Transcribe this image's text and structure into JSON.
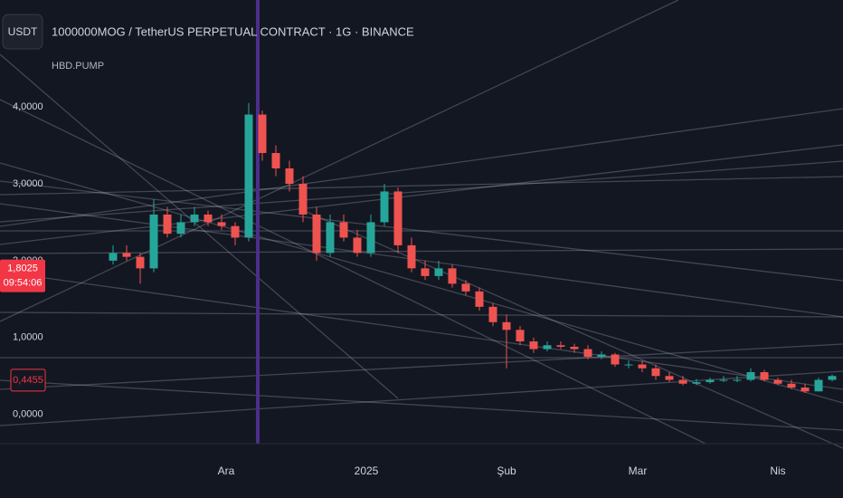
{
  "chart_data": {
    "type": "candlestick",
    "title": "1000000MOG / TetherUS PERPETUAL CONTRACT · 1G · BINANCE",
    "subtitle": "HBD.PUMP",
    "currency_button": "USDT",
    "up_color": "#26a69a",
    "down_color": "#ef5350",
    "x": [
      0,
      3,
      6,
      9,
      12,
      15,
      18,
      21,
      24,
      27,
      30,
      33,
      36,
      39,
      42,
      45,
      48,
      51,
      54,
      57,
      60,
      63,
      66,
      69,
      72,
      75,
      78,
      81,
      84,
      87,
      90,
      93,
      96,
      99,
      102,
      105,
      108,
      111,
      114,
      117,
      120,
      123,
      126,
      129,
      132,
      135,
      138,
      141,
      144,
      147,
      150,
      153,
      156,
      159
    ],
    "open": [
      2.0,
      2.1,
      2.05,
      1.9,
      2.6,
      2.35,
      2.5,
      2.6,
      2.5,
      2.45,
      2.3,
      3.9,
      3.4,
      3.2,
      3.0,
      2.6,
      2.1,
      2.5,
      2.3,
      2.1,
      2.5,
      2.9,
      2.2,
      1.9,
      1.8,
      1.9,
      1.7,
      1.6,
      1.4,
      1.2,
      1.1,
      0.95,
      0.85,
      0.9,
      0.88,
      0.85,
      0.75,
      0.78,
      0.65,
      0.65,
      0.6,
      0.5,
      0.45,
      0.4,
      0.42,
      0.45,
      0.45,
      0.45,
      0.55,
      0.45,
      0.4,
      0.35,
      0.3,
      0.45
    ],
    "high": [
      2.2,
      2.2,
      2.1,
      2.8,
      2.7,
      2.6,
      2.7,
      2.65,
      2.6,
      2.5,
      4.05,
      3.95,
      3.5,
      3.3,
      3.1,
      2.7,
      2.6,
      2.6,
      2.4,
      2.6,
      3.0,
      2.95,
      2.3,
      2.0,
      2.0,
      1.95,
      1.75,
      1.65,
      1.45,
      1.3,
      1.15,
      1.0,
      0.95,
      0.95,
      0.92,
      0.9,
      0.82,
      0.8,
      0.7,
      0.7,
      0.65,
      0.55,
      0.5,
      0.46,
      0.48,
      0.5,
      0.5,
      0.6,
      0.58,
      0.48,
      0.45,
      0.4,
      0.48,
      0.52
    ],
    "low": [
      1.95,
      2.0,
      1.7,
      1.85,
      2.3,
      2.3,
      2.45,
      2.45,
      2.4,
      2.2,
      2.25,
      3.3,
      3.1,
      2.9,
      2.5,
      2.0,
      2.05,
      2.25,
      2.05,
      2.05,
      2.45,
      2.1,
      1.85,
      1.75,
      1.75,
      1.65,
      1.55,
      1.35,
      1.15,
      0.6,
      0.9,
      0.8,
      0.82,
      0.85,
      0.8,
      0.72,
      0.72,
      0.62,
      0.6,
      0.55,
      0.45,
      0.42,
      0.38,
      0.38,
      0.4,
      0.42,
      0.42,
      0.43,
      0.43,
      0.38,
      0.33,
      0.28,
      0.3,
      0.43
    ],
    "close": [
      2.1,
      2.05,
      1.9,
      2.6,
      2.35,
      2.5,
      2.6,
      2.5,
      2.45,
      2.3,
      3.9,
      3.4,
      3.2,
      3.0,
      2.6,
      2.1,
      2.5,
      2.3,
      2.1,
      2.5,
      2.9,
      2.2,
      1.9,
      1.8,
      1.9,
      1.7,
      1.6,
      1.4,
      1.2,
      1.1,
      0.95,
      0.85,
      0.9,
      0.88,
      0.85,
      0.75,
      0.78,
      0.65,
      0.65,
      0.6,
      0.5,
      0.45,
      0.4,
      0.42,
      0.45,
      0.45,
      0.45,
      0.55,
      0.45,
      0.4,
      0.35,
      0.3,
      0.45,
      0.5
    ],
    "xlim": [
      -25,
      161.4
    ],
    "xticks": [
      {
        "value": 25,
        "label": "Ara"
      },
      {
        "value": 56,
        "label": "2025"
      },
      {
        "value": 87,
        "label": "Şub"
      },
      {
        "value": 116,
        "label": "Mar"
      },
      {
        "value": 147,
        "label": "Nis"
      }
    ],
    "ylim": [
      -0.38,
      5.39
    ],
    "yticks": [
      {
        "value": 0,
        "label": "0,0000"
      },
      {
        "value": 1,
        "label": "1,0000"
      },
      {
        "value": 2,
        "label": "2,0000"
      },
      {
        "value": 3,
        "label": "3,0000"
      },
      {
        "value": 4,
        "label": "4,0000"
      }
    ],
    "grid": false,
    "price_labels": [
      {
        "value": 1.8025,
        "label": "1,8025",
        "timer": "09:54:06",
        "style": "filled"
      },
      {
        "value": 0.4455,
        "label": "0,4455",
        "style": "outline"
      }
    ]
  }
}
